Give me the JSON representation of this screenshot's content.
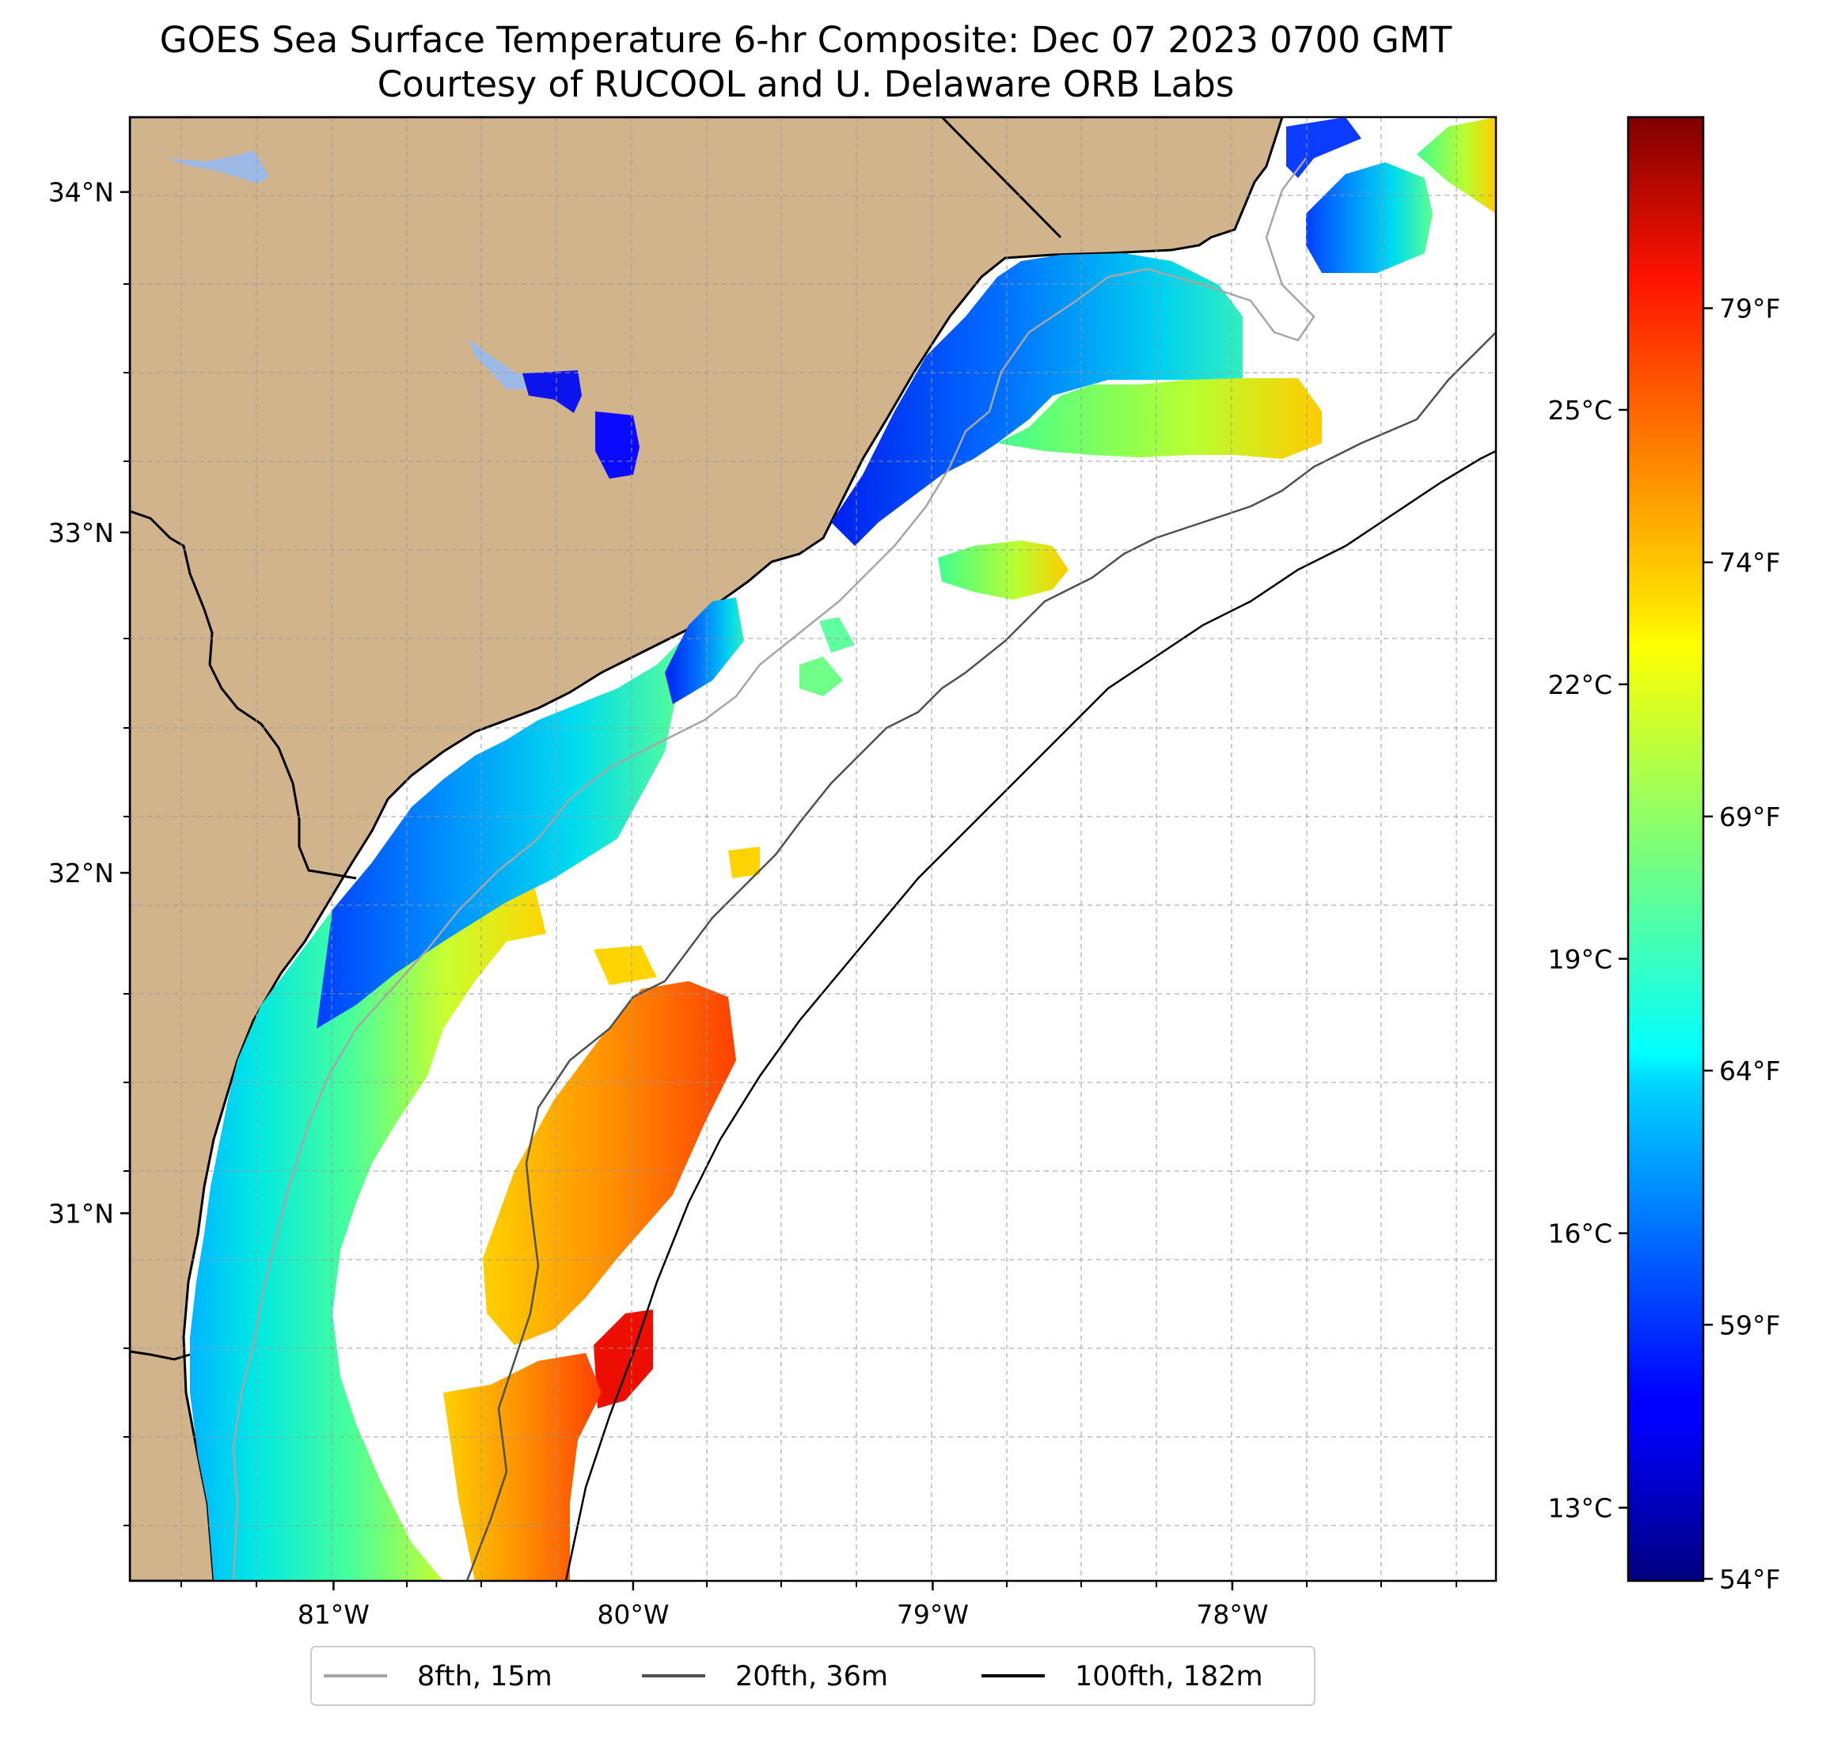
{
  "title": {
    "line1": "GOES Sea Surface Temperature 6-hr Composite: Dec 07 2023 0700 GMT",
    "line2": "Courtesy of RUCOOL and U. Delaware ORB Labs"
  },
  "map": {
    "lon_range": [
      -81.68,
      -77.12
    ],
    "lat_range": [
      29.92,
      34.22
    ],
    "lat_ticks": [
      {
        "value": 34,
        "label": "34°N"
      },
      {
        "value": 33,
        "label": "33°N"
      },
      {
        "value": 32,
        "label": "32°N"
      },
      {
        "value": 31,
        "label": "31°N"
      }
    ],
    "lon_ticks": [
      {
        "value": -81,
        "label": "81°W"
      },
      {
        "value": -80,
        "label": "80°W"
      },
      {
        "value": -79,
        "label": "79°W"
      },
      {
        "value": -78,
        "label": "78°W"
      }
    ],
    "gridlines": "dashed, every 0.25°",
    "colors": {
      "land": "#d2b48c",
      "ocean_no_data": "#ffffff",
      "lakes": "#9db9e6",
      "coastline": "#000000"
    }
  },
  "colorbar": {
    "colormap": "jet",
    "range_celsius": [
      12.2,
      28.2
    ],
    "celsius_ticks": [
      {
        "value": 13,
        "label": "13°C"
      },
      {
        "value": 16,
        "label": "16°C"
      },
      {
        "value": 19,
        "label": "19°C"
      },
      {
        "value": 22,
        "label": "22°C"
      },
      {
        "value": 25,
        "label": "25°C"
      }
    ],
    "fahrenheit_ticks": [
      {
        "value": 54,
        "label": "54°F"
      },
      {
        "value": 59,
        "label": "59°F"
      },
      {
        "value": 64,
        "label": "64°F"
      },
      {
        "value": 69,
        "label": "69°F"
      },
      {
        "value": 74,
        "label": "74°F"
      },
      {
        "value": 79,
        "label": "79°F"
      }
    ]
  },
  "legend": {
    "items": [
      {
        "label": "8fth, 15m",
        "color": "#a6a6a6"
      },
      {
        "label": "20fth, 36m",
        "color": "#505050"
      },
      {
        "label": "100fth, 182m",
        "color": "#000000"
      }
    ]
  }
}
